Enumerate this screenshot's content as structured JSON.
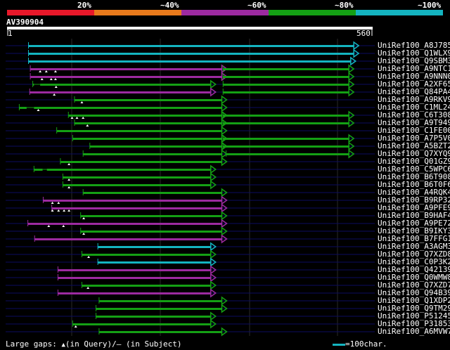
{
  "query_id": "AV390904",
  "query_length": 560,
  "scale_start": "1",
  "scale_end": "560",
  "identity_legend": [
    {
      "label": "20%",
      "color": "#e8182a"
    },
    {
      "label": "~40%",
      "color": "#e87a1c"
    },
    {
      "label": "~60%",
      "color": "#9c2aa0"
    },
    {
      "label": "~80%",
      "color": "#14a014"
    },
    {
      "label": "~100%",
      "color": "#14b4c0"
    }
  ],
  "footer": {
    "gaps_label": "Large gaps:",
    "gap_query_text": "(in Query)/",
    "gap_subject_dash": "—",
    "gap_subject_text": "(in Subject)",
    "scale_label": "=100char."
  },
  "hits": [
    {
      "name": "UniRef100_A8J785",
      "segments": [
        {
          "start": 5,
          "end": 535,
          "ident": "~100%",
          "arrow": true
        }
      ]
    },
    {
      "name": "UniRef100_Q1WLX9",
      "segments": [
        {
          "start": 5,
          "end": 535,
          "ident": "~100%",
          "arrow": true
        }
      ]
    },
    {
      "name": "UniRef100_Q9SBM3",
      "segments": [
        {
          "start": 5,
          "end": 530,
          "ident": "~100%",
          "arrow": true
        }
      ]
    },
    {
      "name": "UniRef100_A9NTC1",
      "segments": [
        {
          "start": 8,
          "end": 320,
          "ident": "~60%",
          "arrow": true
        },
        {
          "start": 322,
          "end": 527,
          "ident": "~80%",
          "arrow": true
        }
      ],
      "gap_marks": [
        24,
        34,
        49
      ]
    },
    {
      "name": "UniRef100_A9NNN0",
      "segments": [
        {
          "start": 8,
          "end": 320,
          "ident": "~60%",
          "arrow": true
        },
        {
          "start": 322,
          "end": 527,
          "ident": "~80%",
          "arrow": true
        }
      ],
      "gap_marks": [
        27,
        42,
        49
      ]
    },
    {
      "name": "UniRef100_A2XF65",
      "segments": [
        {
          "start": 12,
          "end": 302,
          "ident": "~80%",
          "arrow": true
        },
        {
          "start": 322,
          "end": 527,
          "ident": "~80%",
          "arrow": true
        }
      ],
      "gap_marks": [
        50
      ],
      "subject_gaps": [
        [
          14,
          24
        ]
      ]
    },
    {
      "name": "UniRef100_Q84PA4",
      "segments": [
        {
          "start": 7,
          "end": 302,
          "ident": "~60%",
          "arrow": true
        },
        {
          "start": 322,
          "end": 527,
          "ident": "~80%",
          "arrow": true
        }
      ],
      "gap_marks": [
        47
      ]
    },
    {
      "name": "UniRef100_A9RKV9",
      "segments": [
        {
          "start": 80,
          "end": 320,
          "ident": "~80%",
          "arrow": true
        }
      ],
      "gap_marks": [
        92
      ]
    },
    {
      "name": "UniRef100_C1ML24",
      "segments": [
        {
          "start": -10,
          "end": 320,
          "ident": "~80%",
          "arrow": true
        }
      ],
      "gap_marks": [
        21
      ],
      "subject_gaps": [
        [
          2,
          14
        ]
      ]
    },
    {
      "name": "UniRef100_C6T308",
      "segments": [
        {
          "start": 70,
          "end": 320,
          "ident": "~80%",
          "arrow": true
        },
        {
          "start": 322,
          "end": 527,
          "ident": "~80%",
          "arrow": true
        }
      ],
      "gap_marks": [
        76,
        84,
        94
      ]
    },
    {
      "name": "UniRef100_A9T949",
      "segments": [
        {
          "start": 80,
          "end": 320,
          "ident": "~80%",
          "arrow": true
        },
        {
          "start": 322,
          "end": 527,
          "ident": "~80%",
          "arrow": true
        }
      ],
      "gap_marks": [
        101
      ]
    },
    {
      "name": "UniRef100_C1FE00",
      "segments": [
        {
          "start": 51,
          "end": 320,
          "ident": "~80%",
          "arrow": true
        }
      ]
    },
    {
      "name": "UniRef100_A7P5V0",
      "segments": [
        {
          "start": 77,
          "end": 320,
          "ident": "~80%",
          "arrow": true
        },
        {
          "start": 322,
          "end": 527,
          "ident": "~80%",
          "arrow": true
        }
      ]
    },
    {
      "name": "UniRef100_A5BZT2",
      "segments": [
        {
          "start": 105,
          "end": 320,
          "ident": "~80%",
          "arrow": true
        },
        {
          "start": 322,
          "end": 527,
          "ident": "~80%",
          "arrow": true
        }
      ]
    },
    {
      "name": "UniRef100_Q7XYQ9",
      "segments": [
        {
          "start": 94,
          "end": 320,
          "ident": "~80%",
          "arrow": true
        },
        {
          "start": 327,
          "end": 527,
          "ident": "~80%",
          "arrow": true
        }
      ]
    },
    {
      "name": "UniRef100_Q01GZ9",
      "segments": [
        {
          "start": 57,
          "end": 320,
          "ident": "~80%",
          "arrow": true
        }
      ],
      "gap_marks": [
        71
      ]
    },
    {
      "name": "UniRef100_C5WPC6",
      "segments": [
        {
          "start": 14,
          "end": 302,
          "ident": "~80%",
          "arrow": true
        }
      ],
      "subject_gaps": [
        [
          28,
          35
        ]
      ]
    },
    {
      "name": "UniRef100_B6T908",
      "segments": [
        {
          "start": 61,
          "end": 302,
          "ident": "~80%",
          "arrow": true
        }
      ],
      "gap_marks": [
        71
      ]
    },
    {
      "name": "UniRef100_B6T0F6",
      "segments": [
        {
          "start": 61,
          "end": 302,
          "ident": "~80%",
          "arrow": true
        }
      ],
      "gap_marks": [
        71
      ]
    },
    {
      "name": "UniRef100_A4RQK4",
      "segments": [
        {
          "start": 94,
          "end": 320,
          "ident": "~80%",
          "arrow": true
        }
      ]
    },
    {
      "name": "UniRef100_B9RP32",
      "segments": [
        {
          "start": 29,
          "end": 320,
          "ident": "~60%",
          "arrow": true
        }
      ],
      "gap_marks": [
        44,
        54
      ]
    },
    {
      "name": "UniRef100_A9PFE9",
      "segments": [
        {
          "start": 43,
          "end": 320,
          "ident": "~60%",
          "arrow": true
        }
      ],
      "gap_marks": [
        44,
        54,
        63,
        71
      ]
    },
    {
      "name": "UniRef100_B9HAF4",
      "segments": [
        {
          "start": 90,
          "end": 320,
          "ident": "~80%",
          "arrow": true
        }
      ],
      "gap_marks": [
        95
      ]
    },
    {
      "name": "UniRef100_A9PE72",
      "segments": [
        {
          "start": 4,
          "end": 320,
          "ident": "~60%",
          "arrow": true
        }
      ],
      "gap_marks": [
        38,
        62
      ]
    },
    {
      "name": "UniRef100_B9IKY3",
      "segments": [
        {
          "start": 90,
          "end": 320,
          "ident": "~80%",
          "arrow": true
        }
      ],
      "gap_marks": [
        95
      ]
    },
    {
      "name": "UniRef100_B7FFG1",
      "segments": [
        {
          "start": 15,
          "end": 320,
          "ident": "~60%",
          "arrow": true
        }
      ]
    },
    {
      "name": "UniRef100_A3AGM3",
      "segments": [
        {
          "start": 118,
          "end": 302,
          "ident": "~100%",
          "arrow": true
        }
      ]
    },
    {
      "name": "UniRef100_Q7XZD8",
      "segments": [
        {
          "start": 92,
          "end": 302,
          "ident": "~80%",
          "arrow": true
        }
      ],
      "gap_marks": [
        103
      ]
    },
    {
      "name": "UniRef100_C0P3K2",
      "segments": [
        {
          "start": 118,
          "end": 302,
          "ident": "~100%",
          "arrow": true
        }
      ]
    },
    {
      "name": "UniRef100_Q42139",
      "segments": [
        {
          "start": 53,
          "end": 302,
          "ident": "~60%",
          "arrow": true
        }
      ]
    },
    {
      "name": "UniRef100_Q0WMW8",
      "segments": [
        {
          "start": 53,
          "end": 302,
          "ident": "~60%",
          "arrow": true
        }
      ]
    },
    {
      "name": "UniRef100_Q7XZD7",
      "segments": [
        {
          "start": 92,
          "end": 302,
          "ident": "~80%",
          "arrow": true
        }
      ],
      "gap_marks": [
        102
      ]
    },
    {
      "name": "UniRef100_Q94B39",
      "segments": [
        {
          "start": 53,
          "end": 302,
          "ident": "~60%",
          "arrow": true
        }
      ]
    },
    {
      "name": "UniRef100_Q1XDP2",
      "segments": [
        {
          "start": 120,
          "end": 320,
          "ident": "~80%",
          "arrow": true
        }
      ]
    },
    {
      "name": "UniRef100_Q9TM29",
      "segments": [
        {
          "start": 115,
          "end": 320,
          "ident": "~80%",
          "arrow": true
        }
      ]
    },
    {
      "name": "UniRef100_P51245",
      "segments": [
        {
          "start": 115,
          "end": 302,
          "ident": "~80%",
          "arrow": true
        }
      ]
    },
    {
      "name": "UniRef100_P31853",
      "segments": [
        {
          "start": 77,
          "end": 302,
          "ident": "~80%",
          "arrow": true
        }
      ],
      "gap_marks": [
        82
      ]
    },
    {
      "name": "UniRef100_A6MVW7",
      "segments": [
        {
          "start": 120,
          "end": 320,
          "ident": "~80%",
          "arrow": true
        }
      ]
    }
  ]
}
